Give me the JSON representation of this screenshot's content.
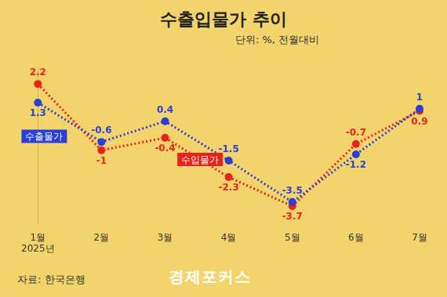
{
  "chart_data": {
    "type": "line",
    "title": "수출입물가 추이",
    "subtitle": "단위: %, 전월대비",
    "source": "자료: 한국은행",
    "credit": "경제포커스",
    "categories": [
      "1월\n2025년",
      "2월",
      "3월",
      "4월",
      "5월",
      "6월",
      "7월"
    ],
    "series": [
      {
        "name": "수출물가",
        "color": "#2a3ed8",
        "values": [
          1.3,
          -0.6,
          0.4,
          -1.5,
          -3.5,
          -1.2,
          1.0
        ]
      },
      {
        "name": "수입물가",
        "color": "#e8231b",
        "values": [
          2.2,
          -1.0,
          -0.4,
          -2.3,
          -3.7,
          -0.7,
          0.9
        ]
      }
    ],
    "ylim": [
      -4.5,
      3
    ],
    "grid": false,
    "tick_labels": "x",
    "data_labels": true,
    "line_style": "dotted",
    "marker": "circle"
  }
}
